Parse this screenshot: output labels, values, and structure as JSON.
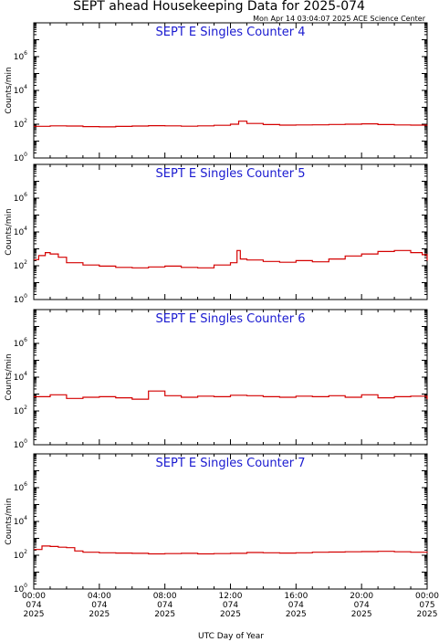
{
  "header": {
    "title": "SEPT ahead Housekeeping Data for 2025-074",
    "timestamp": "Mon Apr 14 03:04:07 2025 ACE Science Center"
  },
  "chart_data": [
    {
      "type": "line",
      "title": "SEPT E Singles Counter 4",
      "ylabel": "Counts/min",
      "xlabel": "UTC Day of Year",
      "yscale": "log",
      "ylim": [
        1,
        100000000
      ],
      "xlim": [
        0,
        24
      ],
      "color": "#d40000",
      "x": [
        0,
        1,
        2,
        3,
        4,
        5,
        6,
        7,
        8,
        9,
        10,
        11,
        12,
        12.5,
        13,
        14,
        15,
        16,
        17,
        18,
        19,
        20,
        21,
        22,
        23,
        24
      ],
      "values": [
        75,
        80,
        78,
        72,
        70,
        74,
        78,
        82,
        80,
        76,
        80,
        86,
        100,
        150,
        110,
        95,
        88,
        90,
        92,
        96,
        100,
        105,
        95,
        90,
        88,
        90
      ]
    },
    {
      "type": "line",
      "title": "SEPT E Singles Counter 5",
      "ylabel": "Counts/min",
      "xlabel": "UTC Day of Year",
      "yscale": "log",
      "ylim": [
        1,
        100000000
      ],
      "xlim": [
        0,
        24
      ],
      "color": "#d40000",
      "x": [
        0,
        0.3,
        0.7,
        1,
        1.5,
        2,
        3,
        4,
        5,
        6,
        7,
        8,
        9,
        10,
        11,
        12,
        12.4,
        12.6,
        13,
        14,
        15,
        16,
        17,
        18,
        19,
        20,
        21,
        22,
        23,
        23.7,
        24
      ],
      "values": [
        230,
        400,
        600,
        500,
        320,
        150,
        110,
        95,
        80,
        75,
        85,
        95,
        80,
        75,
        110,
        150,
        800,
        250,
        220,
        180,
        160,
        200,
        170,
        250,
        380,
        500,
        700,
        800,
        600,
        450,
        200
      ]
    },
    {
      "type": "line",
      "title": "SEPT E Singles Counter 6",
      "ylabel": "Counts/min",
      "xlabel": "UTC Day of Year",
      "yscale": "log",
      "ylim": [
        1,
        100000000
      ],
      "xlim": [
        0,
        24
      ],
      "color": "#d40000",
      "x": [
        0,
        1,
        2,
        3,
        4,
        5,
        6,
        7,
        8,
        9,
        10,
        11,
        12,
        13,
        14,
        15,
        16,
        17,
        18,
        19,
        20,
        21,
        22,
        23,
        24
      ],
      "values": [
        700,
        900,
        550,
        650,
        700,
        600,
        500,
        1500,
        800,
        650,
        750,
        700,
        850,
        800,
        700,
        650,
        750,
        700,
        800,
        650,
        900,
        600,
        700,
        750,
        500
      ]
    },
    {
      "type": "line",
      "title": "SEPT E Singles Counter 7",
      "ylabel": "Counts/min",
      "xlabel": "UTC Day of Year",
      "yscale": "log",
      "ylim": [
        1,
        100000000
      ],
      "xlim": [
        0,
        24
      ],
      "color": "#d40000",
      "x": [
        0,
        0.5,
        1,
        1.5,
        2,
        2.5,
        3,
        4,
        5,
        6,
        7,
        8,
        9,
        10,
        11,
        12,
        13,
        14,
        15,
        16,
        17,
        18,
        19,
        20,
        21,
        22,
        23,
        24
      ],
      "values": [
        220,
        350,
        330,
        300,
        280,
        180,
        150,
        140,
        135,
        130,
        120,
        125,
        130,
        120,
        125,
        130,
        145,
        140,
        135,
        140,
        150,
        155,
        160,
        165,
        170,
        160,
        150,
        165
      ]
    }
  ],
  "axes": {
    "y_ticks": [
      {
        "base": "10",
        "exp": "0",
        "log": 0
      },
      {
        "base": "10",
        "exp": "2",
        "log": 2
      },
      {
        "base": "10",
        "exp": "4",
        "log": 4
      },
      {
        "base": "10",
        "exp": "6",
        "log": 6
      }
    ],
    "x_ticks": [
      {
        "hour": 0,
        "time": "00:00",
        "doy": "074",
        "year": "2025"
      },
      {
        "hour": 4,
        "time": "04:00",
        "doy": "074",
        "year": "2025"
      },
      {
        "hour": 8,
        "time": "08:00",
        "doy": "074",
        "year": "2025"
      },
      {
        "hour": 12,
        "time": "12:00",
        "doy": "074",
        "year": "2025"
      },
      {
        "hour": 16,
        "time": "16:00",
        "doy": "074",
        "year": "2025"
      },
      {
        "hour": 20,
        "time": "20:00",
        "doy": "074",
        "year": "2025"
      },
      {
        "hour": 24,
        "time": "00:00",
        "doy": "075",
        "year": "2025"
      }
    ]
  }
}
